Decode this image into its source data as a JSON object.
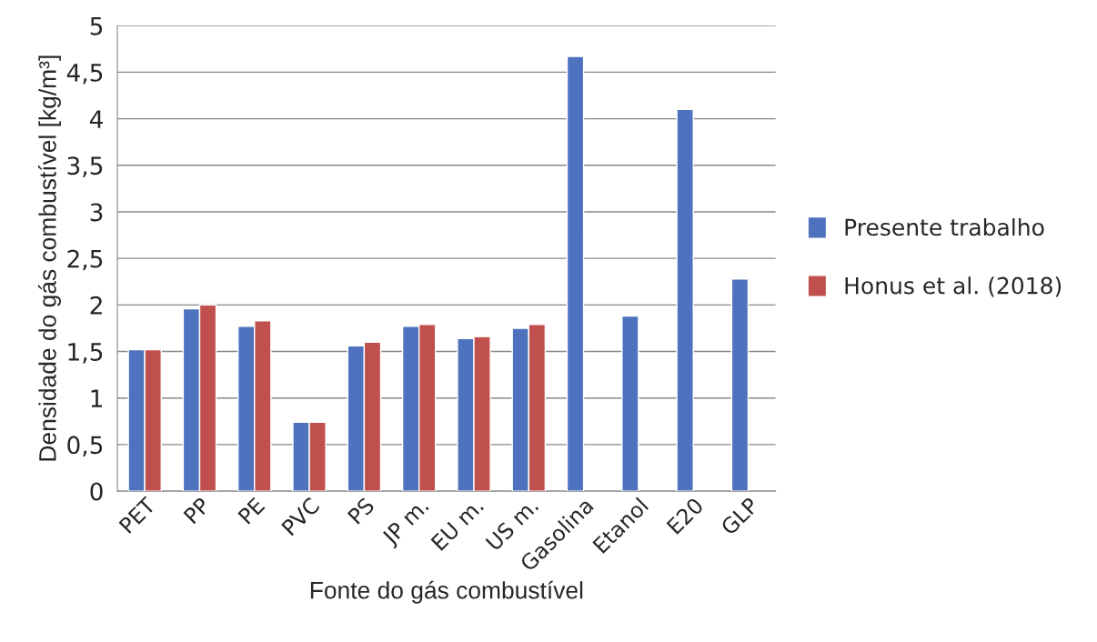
{
  "chart_data": {
    "type": "bar",
    "xlabel": "Fonte do gás combustível",
    "ylabel": "Densidade do gás combustível [kg/m³]",
    "categories": [
      "PET",
      "PP",
      "PE",
      "PVC",
      "PS",
      "JP m.",
      "EU m.",
      "US m.",
      "Gasolina",
      "Etanol",
      "E20",
      "GLP"
    ],
    "series": [
      {
        "name": "Presente trabalho",
        "color": "#4f72be",
        "values": [
          1.52,
          1.96,
          1.77,
          0.74,
          1.56,
          1.77,
          1.64,
          1.75,
          4.67,
          1.88,
          4.1,
          2.28
        ]
      },
      {
        "name": "Honus et al. (2018)",
        "color": "#c0504d",
        "values": [
          1.52,
          2.0,
          1.83,
          0.74,
          1.6,
          1.79,
          1.66,
          1.79,
          null,
          null,
          null,
          null
        ]
      }
    ],
    "ylim": [
      0,
      5
    ],
    "yticks": [
      0,
      {
        "value": 0.5,
        "label": "0,5"
      },
      1,
      {
        "value": 1.5,
        "label": "1,5"
      },
      2,
      {
        "value": 2.5,
        "label": "2,5"
      },
      3,
      {
        "value": 3.5,
        "label": "3,5"
      },
      4,
      {
        "value": 4.5,
        "label": "4,5"
      },
      5
    ],
    "grid": "y",
    "legend": "right"
  }
}
